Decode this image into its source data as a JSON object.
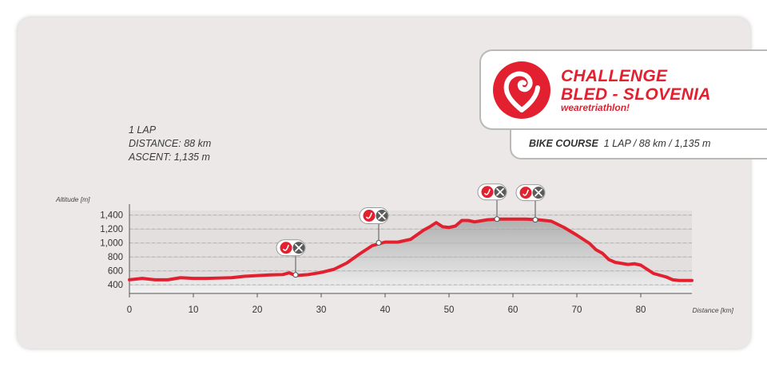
{
  "info": {
    "laps": "1 LAP",
    "distance": "DISTANCE: 88 km",
    "ascent": "ASCENT: 1,135 m"
  },
  "logo": {
    "line1": "CHALLENGE",
    "line2": "BLED - SLOVENIA",
    "tagline_prefix": "weare",
    "tagline_suffix": "triathlon!",
    "brand_color": "#e2202f"
  },
  "course": {
    "label": "BIKE COURSE",
    "details": "1 LAP / 88 km / 1,135 m"
  },
  "chart_data": {
    "type": "area",
    "xlabel": "Distance [km]",
    "ylabel": "Altitude [m]",
    "xlim": [
      0,
      88
    ],
    "ylim": [
      400,
      1400
    ],
    "xticks": [
      0,
      10,
      20,
      30,
      40,
      50,
      60,
      70,
      80
    ],
    "yticks": [
      400,
      600,
      800,
      1000,
      1200,
      1400
    ],
    "ytick_labels": [
      "400",
      "600",
      "800",
      "1,000",
      "1,200",
      "1,400"
    ],
    "line_color": "#e2202f",
    "profile": {
      "x": [
        0,
        2,
        4,
        6,
        8,
        10,
        12,
        14,
        16,
        18,
        20,
        22,
        24,
        25,
        26,
        28,
        30,
        32,
        34,
        36,
        37,
        38,
        40,
        42,
        44,
        46,
        47,
        48,
        49,
        50,
        51,
        52,
        53,
        54,
        56,
        58,
        60,
        62,
        64,
        66,
        68,
        70,
        72,
        73,
        74,
        75,
        76,
        78,
        79,
        80,
        82,
        84,
        85,
        86,
        88
      ],
      "y": [
        470,
        490,
        470,
        470,
        500,
        490,
        490,
        495,
        500,
        520,
        530,
        540,
        545,
        570,
        530,
        545,
        575,
        620,
        710,
        840,
        900,
        960,
        1010,
        1010,
        1050,
        1180,
        1230,
        1290,
        1230,
        1220,
        1240,
        1320,
        1320,
        1300,
        1330,
        1340,
        1340,
        1340,
        1330,
        1310,
        1220,
        1110,
        990,
        900,
        850,
        760,
        720,
        690,
        700,
        680,
        560,
        510,
        470,
        460,
        460
      ]
    },
    "aid_stations": [
      {
        "km": 26,
        "altitude": 540,
        "icons": [
          "challenge-icon",
          "crossed-tools-icon"
        ]
      },
      {
        "km": 39,
        "altitude": 1000,
        "icons": [
          "challenge-icon",
          "crossed-tools-icon"
        ]
      },
      {
        "km": 57.5,
        "altitude": 1340,
        "icons": [
          "challenge-icon",
          "crossed-tools-icon"
        ]
      },
      {
        "km": 63.5,
        "altitude": 1330,
        "icons": [
          "challenge-icon",
          "crossed-tools-icon"
        ]
      }
    ]
  }
}
